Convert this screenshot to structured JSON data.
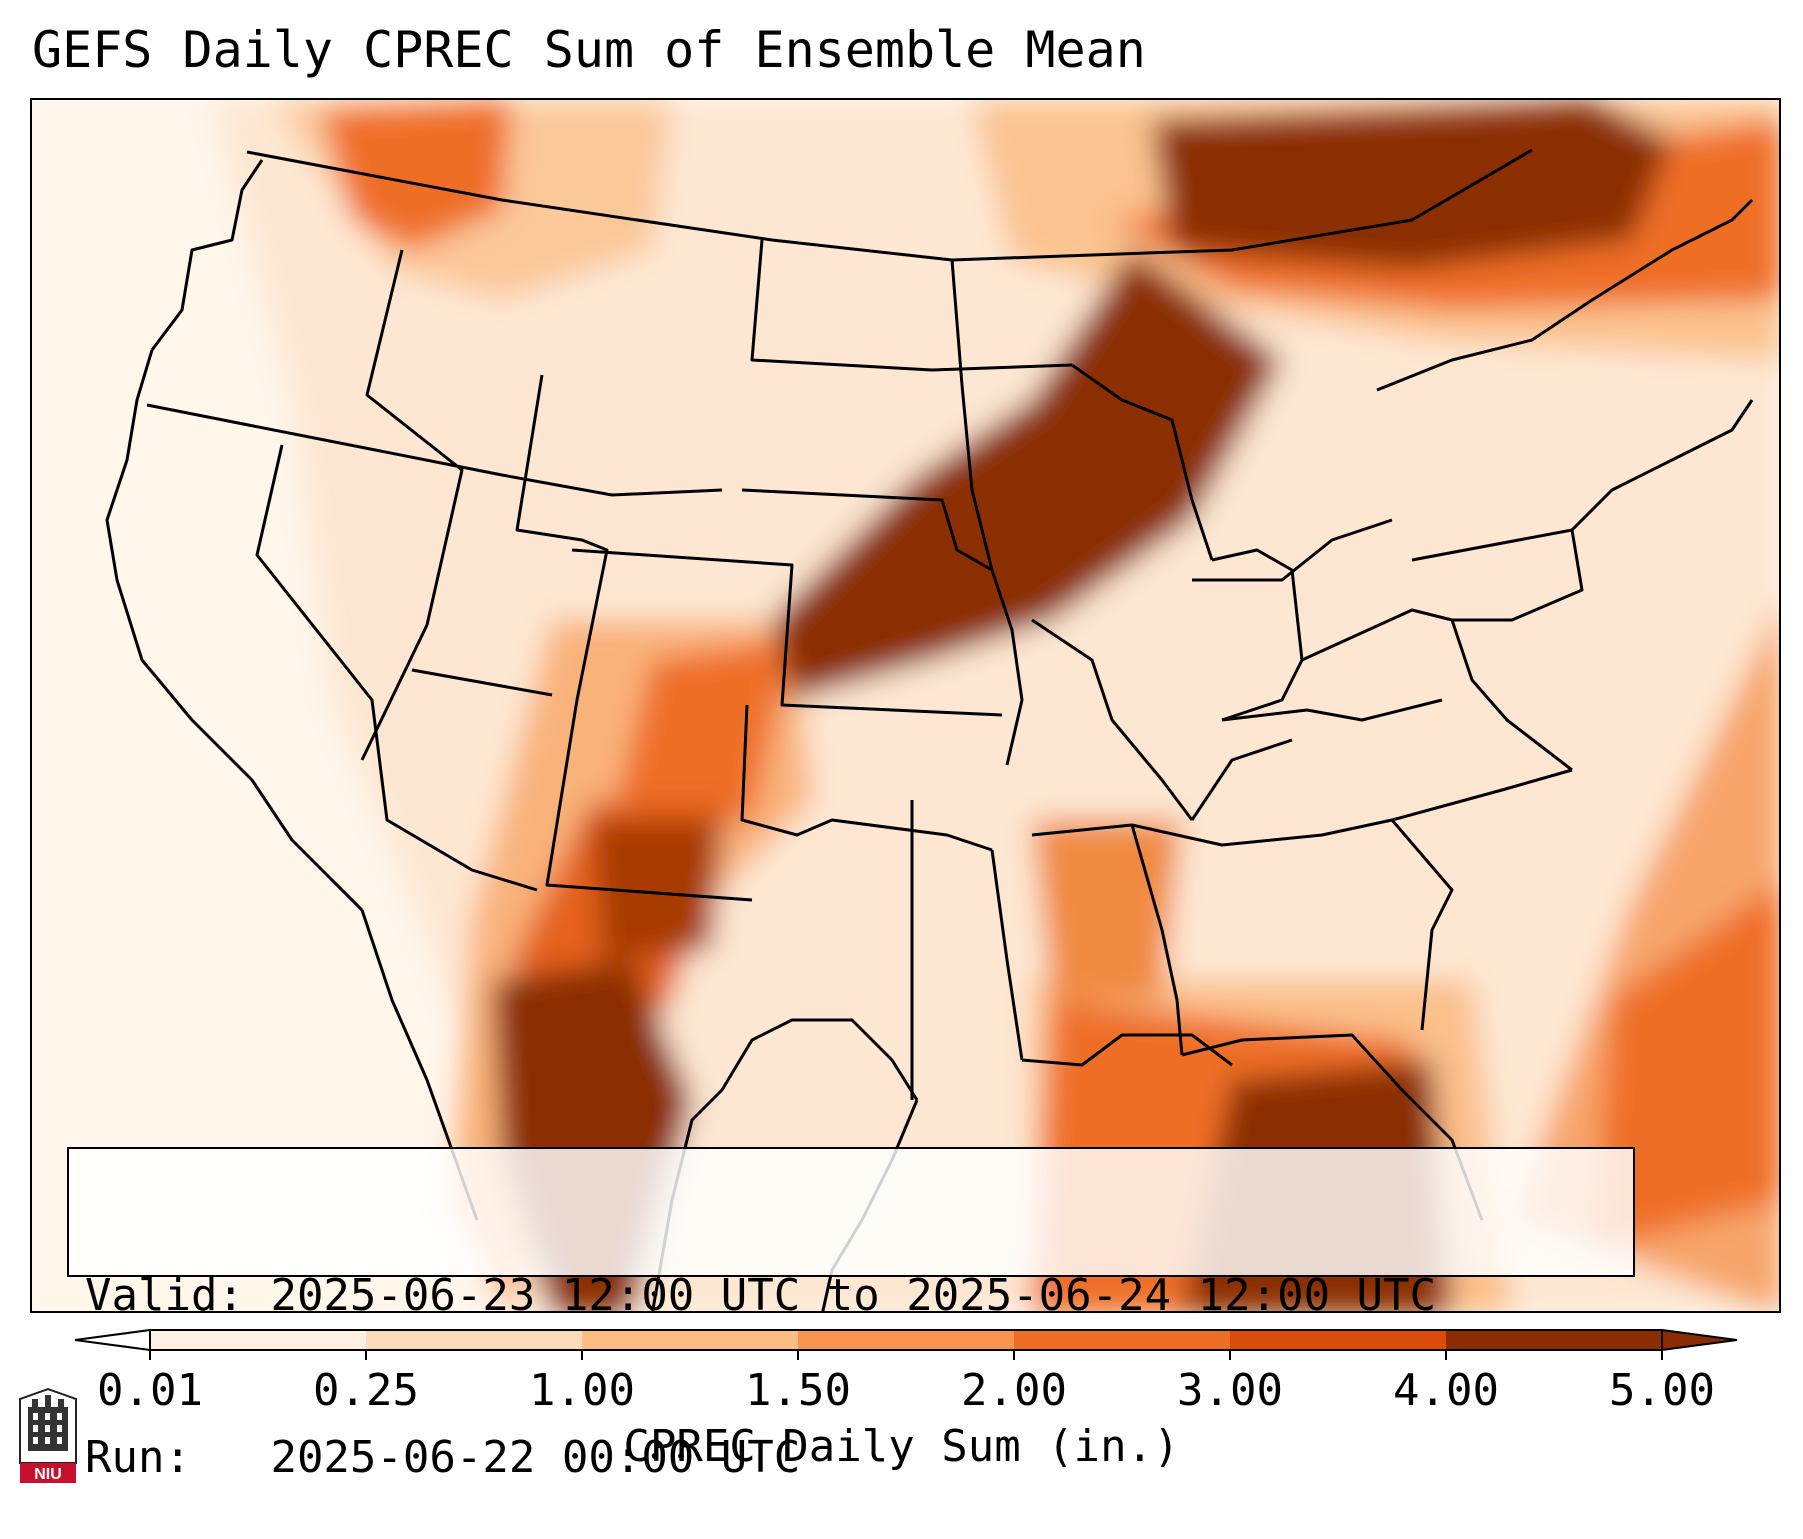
{
  "title": "GEFS Daily CPREC Sum of Ensemble Mean",
  "info": {
    "valid_label": "Valid:",
    "valid_text": "2025-06-23 12:00 UTC to 2025-06-24 12:00 UTC",
    "run_label": "Run:",
    "run_text": "2025-06-22 00:00 UTC"
  },
  "colorbar": {
    "label": "CPREC Daily Sum (in.)",
    "ticks": [
      "0.01",
      "0.25",
      "1.00",
      "1.50",
      "2.00",
      "3.00",
      "4.00",
      "5.00"
    ],
    "colors": [
      "#fff2e4",
      "#fddcbb",
      "#fdbd85",
      "#f9944f",
      "#ef6e25",
      "#d94d09",
      "#8b2d03"
    ]
  },
  "logo": {
    "text": "NIU",
    "icon": "niu-tower-icon"
  }
}
